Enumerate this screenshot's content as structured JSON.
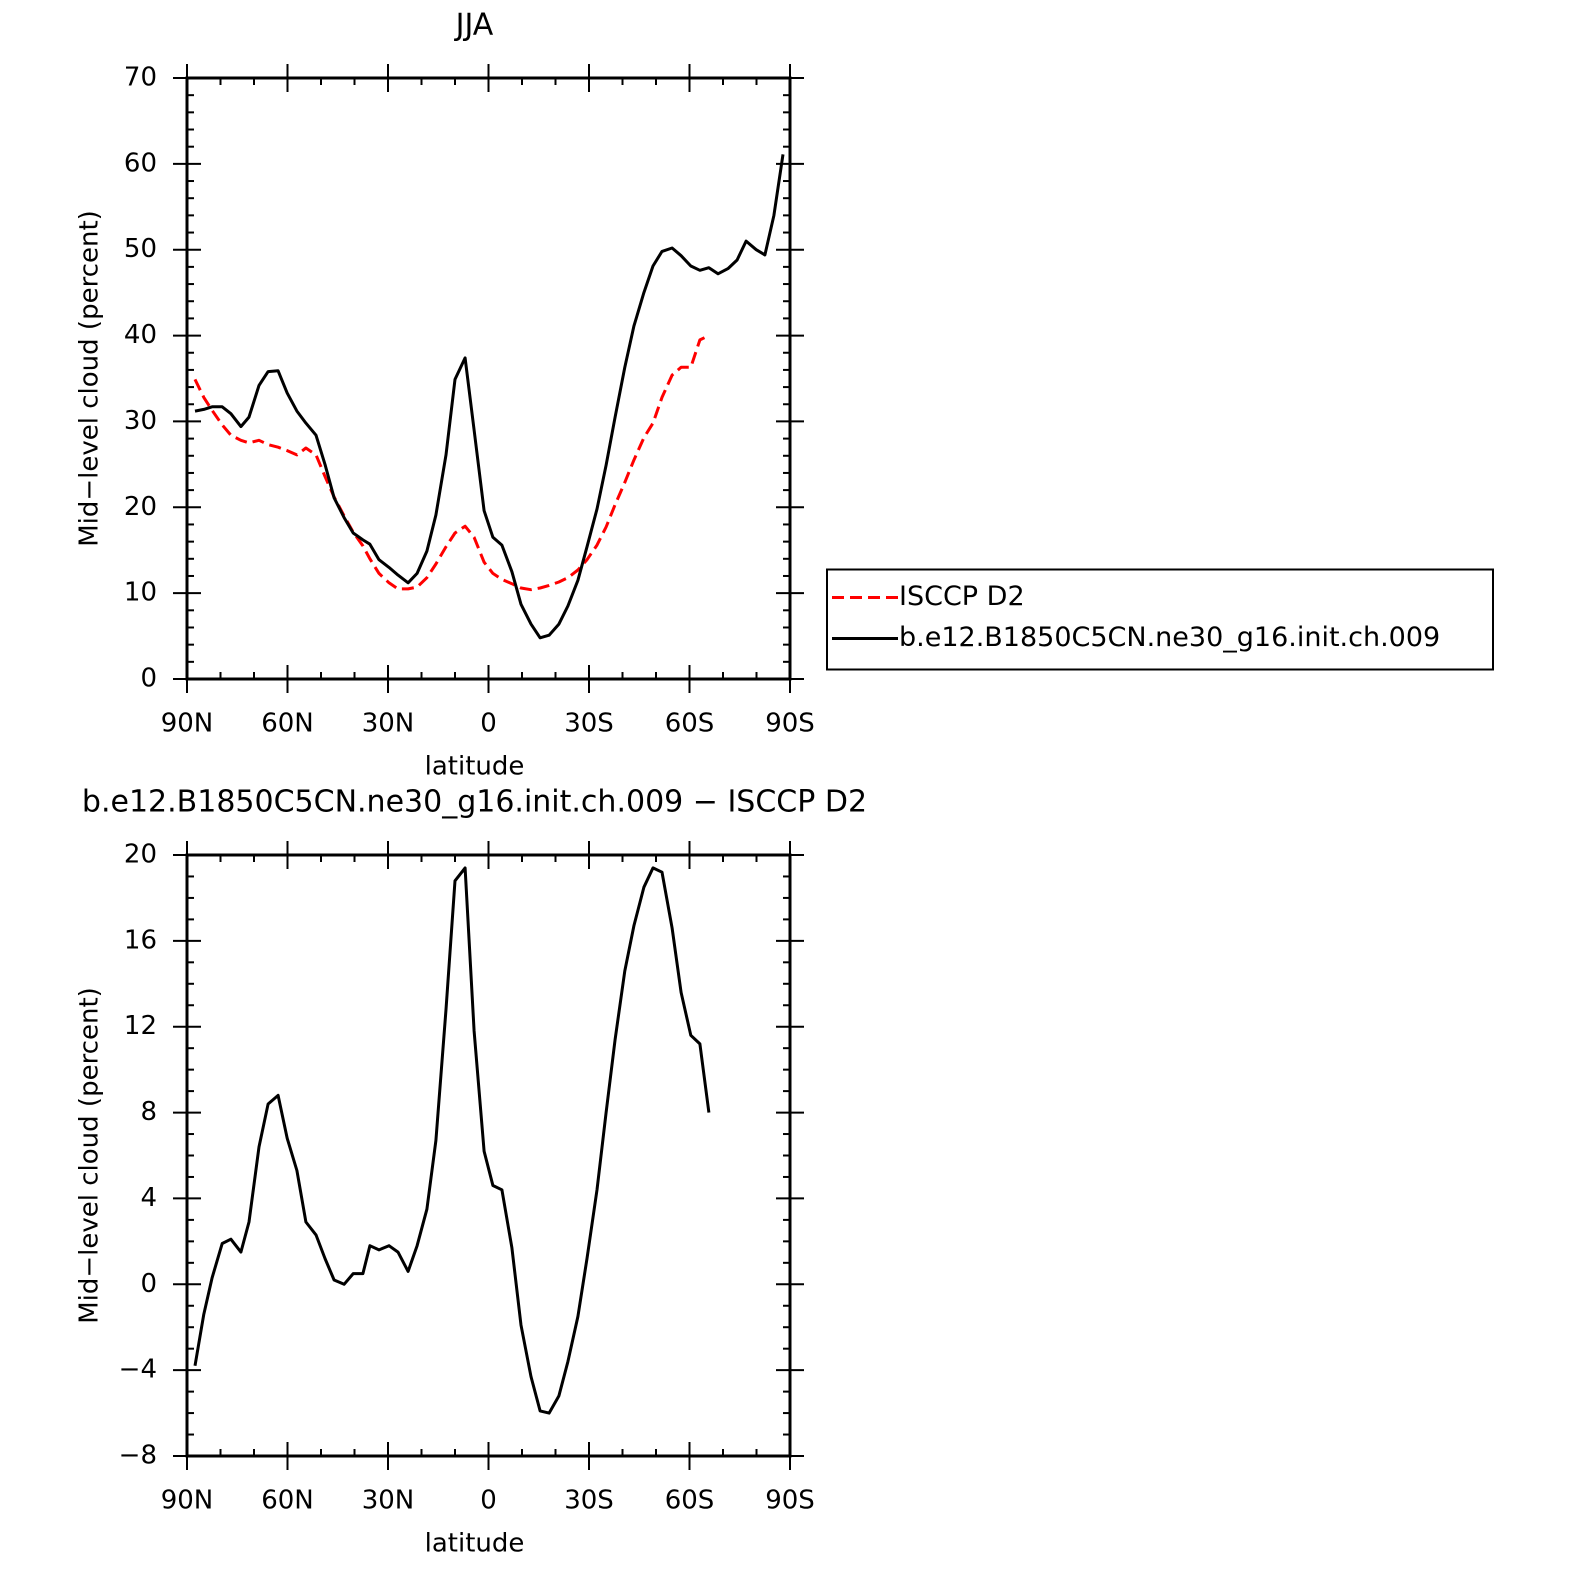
{
  "chart_data": [
    {
      "type": "line",
      "title": "JJA",
      "xlabel": "latitude",
      "ylabel": "Mid−level cloud (percent)",
      "x": [
        87.6,
        85,
        82.5,
        79.5,
        76.9,
        73.9,
        71.5,
        68.5,
        65.8,
        62.8,
        60.1,
        57.2,
        54.5,
        51.5,
        48.8,
        46.1,
        43.1,
        40.4,
        37.5,
        35.4,
        32.7,
        29.7,
        27,
        24,
        21.3,
        18.4,
        15.7,
        12.7,
        10,
        7,
        4.3,
        1.3,
        -1.3,
        -4,
        -7,
        -9.7,
        -12.7,
        -15.4,
        -18.1,
        -21,
        -23.7,
        -26.7,
        -29.4,
        -32.4,
        -35.1,
        -37.8,
        -40.7,
        -43.4,
        -46.4,
        -49.1,
        -51.8,
        -54.8,
        -57.5,
        -60.4,
        -63.1,
        -65.8,
        -68.5,
        -71.5,
        -74.2,
        -76.9,
        -79.9,
        -82.5,
        -85.2,
        -87.9
      ],
      "xlim": [
        90,
        -90
      ],
      "xticks": [
        {
          "value": 90,
          "label": "90N"
        },
        {
          "value": 60,
          "label": "60N"
        },
        {
          "value": 30,
          "label": "30N"
        },
        0,
        {
          "value": -30,
          "label": "30S"
        },
        {
          "value": -60,
          "label": "60S"
        },
        {
          "value": -90,
          "label": "90S"
        }
      ],
      "ylim": [
        0,
        70
      ],
      "yticks": [
        0,
        10,
        20,
        30,
        40,
        50,
        60,
        70
      ],
      "legend": "right",
      "series": [
        {
          "name": "ISCCP D2",
          "color": "#ff0000",
          "linestyle": "dashed",
          "values": [
            34.9,
            32.8,
            31.3,
            29.6,
            28.4,
            27.8,
            27.5,
            27.8,
            27.3,
            27,
            26.6,
            26.1,
            26.9,
            26.1,
            23.6,
            21.2,
            19,
            17.1,
            15.5,
            14,
            12.3,
            11.2,
            10.5,
            10.5,
            10.7,
            11.8,
            13.4,
            15.4,
            17,
            17.8,
            16.5,
            13.6,
            12.3,
            11.6,
            11.1,
            10.6,
            10.4,
            10.6,
            10.9,
            11.3,
            11.8,
            12.7,
            13.9,
            15.6,
            17.7,
            20.3,
            22.9,
            25.5,
            28.1,
            29.8,
            32.8,
            35.4,
            36.3,
            36.3,
            39.5,
            40,
            null,
            null,
            null,
            null,
            null,
            null,
            null,
            null
          ]
        },
        {
          "name": "b.e12.B1850C5CN.ne30_g16.init.ch.009",
          "color": "#000000",
          "linestyle": "solid",
          "values": [
            31.2,
            31.4,
            31.7,
            31.7,
            30.9,
            29.4,
            30.5,
            34.2,
            35.8,
            35.9,
            33.3,
            31.2,
            29.8,
            28.4,
            25,
            21.1,
            18.8,
            17,
            16.2,
            15.7,
            13.9,
            13,
            12.1,
            11.2,
            12.3,
            14.9,
            19.1,
            26.1,
            34.9,
            37.4,
            29,
            19.6,
            16.5,
            15.6,
            12.5,
            8.7,
            6.4,
            4.8,
            5.1,
            6.4,
            8.5,
            11.5,
            15.4,
            19.8,
            24.9,
            30.5,
            36.3,
            41.1,
            45,
            48.1,
            49.8,
            50.2,
            49.3,
            48.1,
            47.6,
            47.9,
            47.2,
            47.8,
            48.8,
            51,
            50,
            49.4,
            54,
            61.1
          ]
        }
      ]
    },
    {
      "type": "line",
      "title": "b.e12.B1850C5CN.ne30_g16.init.ch.009 − ISCCP D2",
      "xlabel": "latitude",
      "ylabel": "Mid−level cloud (percent)",
      "x": [
        87.6,
        85,
        82.5,
        79.5,
        76.9,
        73.9,
        71.5,
        68.5,
        65.8,
        62.8,
        60.1,
        57.2,
        54.5,
        51.5,
        48.8,
        46.1,
        43.1,
        40.4,
        37.5,
        35.4,
        32.7,
        29.7,
        27,
        24,
        21.3,
        18.4,
        15.7,
        12.7,
        10,
        7,
        4.3,
        1.3,
        -1.3,
        -4,
        -7,
        -9.7,
        -12.7,
        -15.4,
        -18.1,
        -21,
        -23.7,
        -26.7,
        -29.4,
        -32.4,
        -35.1,
        -37.8,
        -40.7,
        -43.4,
        -46.4,
        -49.1,
        -51.8,
        -54.8,
        -57.5,
        -60.4,
        -63.1,
        -65.8
      ],
      "xlim": [
        90,
        -90
      ],
      "xticks": [
        {
          "value": 90,
          "label": "90N"
        },
        {
          "value": 60,
          "label": "60N"
        },
        {
          "value": 30,
          "label": "30N"
        },
        0,
        {
          "value": -30,
          "label": "30S"
        },
        {
          "value": -60,
          "label": "60S"
        },
        {
          "value": -90,
          "label": "90S"
        }
      ],
      "ylim": [
        -8,
        20
      ],
      "yticks": [
        {
          "value": -8,
          "label": "−8"
        },
        {
          "value": -4,
          "label": "−4"
        },
        0,
        4,
        8,
        12,
        16,
        20
      ],
      "series": [
        {
          "color": "#000000",
          "linestyle": "solid",
          "values": [
            -3.8,
            -1.4,
            0.3,
            1.9,
            2.1,
            1.5,
            2.9,
            6.4,
            8.4,
            8.8,
            6.8,
            5.3,
            2.9,
            2.3,
            1.2,
            0.2,
            0,
            0.5,
            0.5,
            1.8,
            1.6,
            1.8,
            1.5,
            0.6,
            1.8,
            3.5,
            6.7,
            12.8,
            18.8,
            19.4,
            11.8,
            6.2,
            4.6,
            4.4,
            1.7,
            -1.9,
            -4.3,
            -5.9,
            -6,
            -5.2,
            -3.6,
            -1.5,
            1.2,
            4.4,
            8,
            11.4,
            14.6,
            16.7,
            18.5,
            19.4,
            19.2,
            16.6,
            13.6,
            11.6,
            11.2,
            8
          ]
        }
      ]
    }
  ]
}
